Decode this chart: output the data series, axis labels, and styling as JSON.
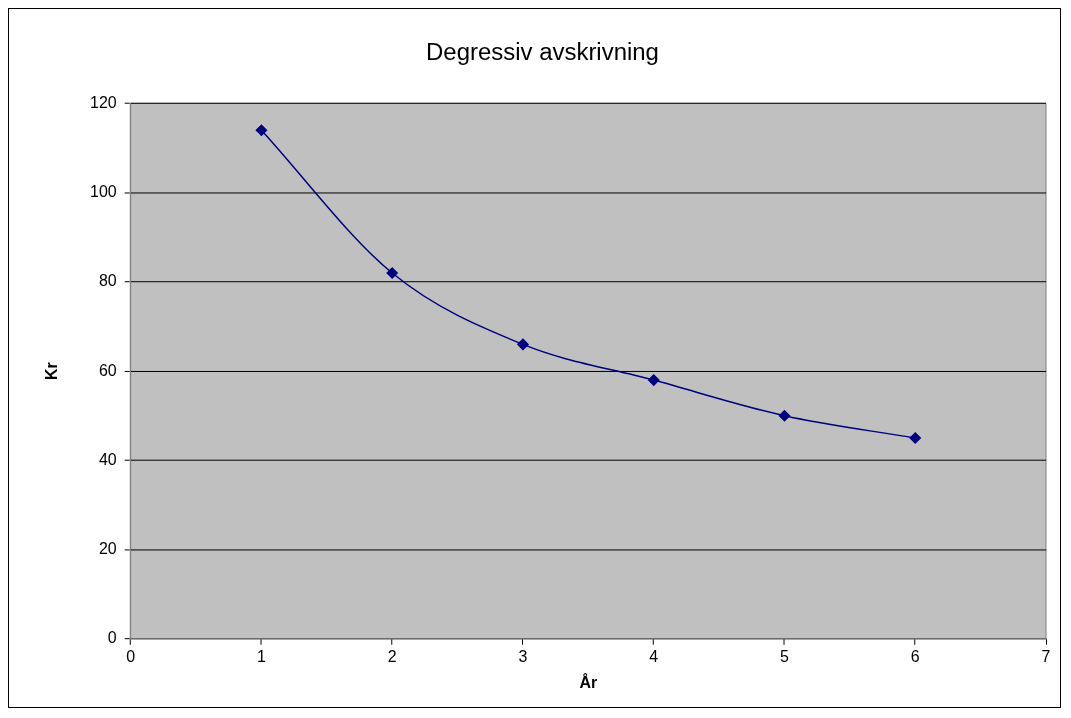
{
  "chart_data": {
    "type": "line",
    "title": "Degressiv avskrivning",
    "xlabel": "År",
    "ylabel": "Kr",
    "x": [
      1,
      2,
      3,
      4,
      5,
      6
    ],
    "series": [
      {
        "color": "#000080",
        "values": [
          114,
          82,
          66,
          58,
          50,
          45
        ]
      }
    ],
    "xlim": [
      0,
      7
    ],
    "xticks": [
      0,
      1,
      2,
      3,
      4,
      5,
      6,
      7
    ],
    "ylim": [
      0,
      120
    ],
    "yticks": [
      0,
      20,
      40,
      60,
      80,
      100,
      120
    ],
    "grid": "y",
    "legend": false,
    "marker": "diamond"
  }
}
